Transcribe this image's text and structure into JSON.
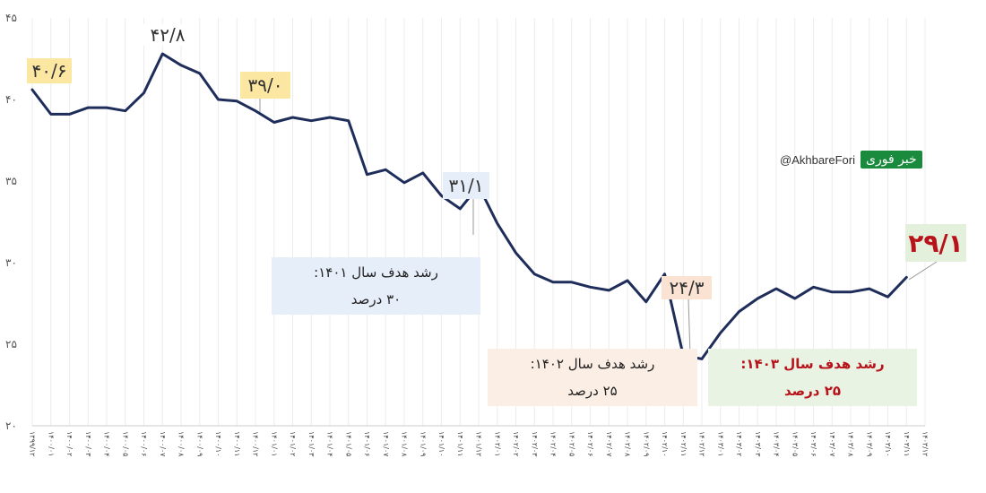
{
  "chart_data": {
    "type": "line",
    "ylim": [
      20,
      45
    ],
    "yticks": [
      "۴۵",
      "۴۰",
      "۳۵",
      "۳۰",
      "۲۵",
      "۲۰"
    ],
    "x": [
      "۱۳۹۹/۱۲",
      "۱۴۰۰/۰۱",
      "۱۴۰۰/۰۲",
      "۱۴۰۰/۰۳",
      "۱۴۰۰/۰۴",
      "۱۴۰۰/۰۵",
      "۱۴۰۰/۰۶",
      "۱۴۰۰/۰۷",
      "۱۴۰۰/۰۸",
      "۱۴۰۰/۰۹",
      "۱۴۰۰/۱۰",
      "۱۴۰۰/۱۱",
      "۱۴۰۰/۱۲",
      "۱۴۰۱/۰۱",
      "۱۴۰۱/۰۲",
      "۱۴۰۱/۰۳",
      "۱۴۰۱/۰۴",
      "۱۴۰۱/۰۵",
      "۱۴۰۱/۰۶",
      "۱۴۰۱/۰۷",
      "۱۴۰۱/۰۸",
      "۱۴۰۱/۰۹",
      "۱۴۰۱/۱۰",
      "۱۴۰۱/۱۱",
      "۱۴۰۱/۱۲",
      "۱۴۰۲/۰۱",
      "۱۴۰۲/۰۲",
      "۱۴۰۲/۰۳",
      "۱۴۰۲/۰۴",
      "۱۴۰۲/۰۵",
      "۱۴۰۲/۰۶",
      "۱۴۰۲/۰۷",
      "۱۴۰۲/۰۸",
      "۱۴۰۲/۰۹",
      "۱۴۰۲/۱۰",
      "۱۴۰۲/۱۱",
      "۱۴۰۲/۱۲",
      "۱۴۰۳/۰۱",
      "۱۴۰۳/۰۲",
      "۱۴۰۳/۰۳",
      "۱۴۰۳/۰۴",
      "۱۴۰۳/۰۵",
      "۱۴۰۳/۰۶",
      "۱۴۰۳/۰۷",
      "۱۴۰۳/۰۸",
      "۱۴۰۳/۰۹",
      "۱۴۰۳/۱۰",
      "۱۴۰۳/۱۱",
      "۱۴۰۳/۱۲"
    ],
    "values": [
      40.6,
      39.1,
      39.1,
      39.5,
      39.5,
      39.3,
      40.4,
      42.8,
      42.1,
      41.6,
      40.0,
      39.9,
      39.3,
      38.6,
      38.9,
      38.7,
      38.9,
      38.7,
      35.4,
      35.7,
      34.9,
      35.5,
      34.1,
      33.3,
      34.7,
      32.4,
      30.6,
      29.3,
      28.8,
      28.8,
      28.5,
      28.3,
      28.9,
      27.6,
      29.3,
      24.3,
      24.1,
      25.7,
      27.0,
      27.8,
      28.4,
      27.8,
      28.5,
      28.2,
      28.2,
      28.4,
      27.9,
      29.1,
      null
    ],
    "series_color": "#1f2d5a",
    "annotations": [
      {
        "value": "۴۰/۶",
        "bg": "#fbe7a1",
        "color": "#333333"
      },
      {
        "value": "۴۲/۸",
        "bg": "#ffffff",
        "color": "#333333"
      },
      {
        "value": "۳۹/۰",
        "bg": "#fbe7a1",
        "color": "#333333"
      },
      {
        "value": "۳۱/۱",
        "bg": "#e6eef9",
        "color": "#333333"
      },
      {
        "value": "۲۴/۳",
        "bg": "#fbe3d4",
        "color": "#333333"
      },
      {
        "value": "۲۹/۱",
        "bg": "#e3f0dc",
        "color": "#b8121a"
      }
    ],
    "notes": [
      {
        "line1": "رشد هدف سال ۱۴۰۱:",
        "line2": "۳۰ درصد",
        "bg": "#e6eef9",
        "color": "#222222"
      },
      {
        "line1": "رشد هدف سال ۱۴۰۲:",
        "line2": "۲۵ درصد",
        "bg": "#fbeee4",
        "color": "#222222"
      },
      {
        "line1": "رشد هدف سال ۱۴۰۳:",
        "line2": "۲۵ درصد",
        "bg": "#e8f3e3",
        "color": "#b8121a"
      }
    ]
  },
  "brand": {
    "handle": "@AkhbareFori",
    "logo": "خبر فوری"
  }
}
